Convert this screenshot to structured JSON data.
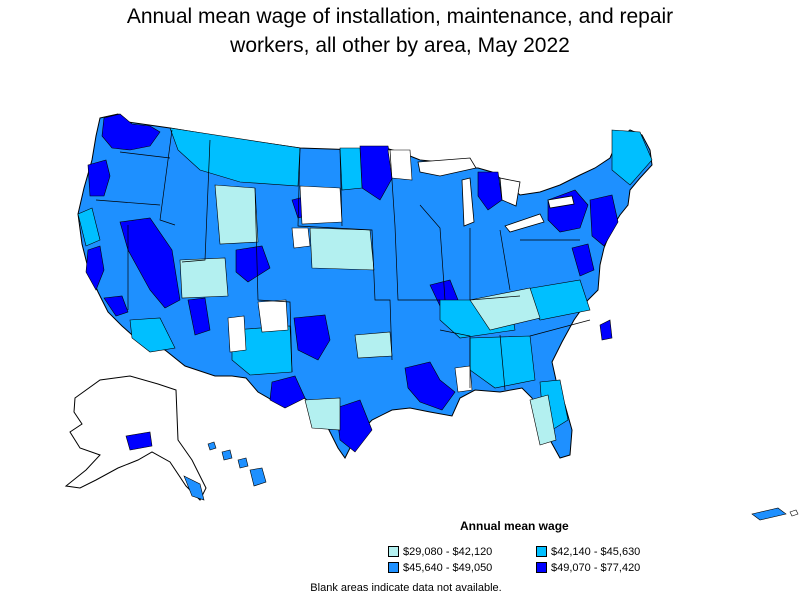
{
  "title_lines": [
    "Annual mean wage of installation, maintenance, and repair",
    "workers, all other by area, May 2022"
  ],
  "legend": {
    "title": "Annual mean wage",
    "items": [
      {
        "label": "$29,080 - $42,120",
        "color": "#b3f0f0"
      },
      {
        "label": "$42,140 - $45,630",
        "color": "#00bfff"
      },
      {
        "label": "$45,640 - $49,050",
        "color": "#1e90ff"
      },
      {
        "label": "$49,070 - $77,420",
        "color": "#0000ff"
      }
    ]
  },
  "note": "Blank areas indicate data not available.",
  "map_colors": {
    "blank": "#ffffff",
    "outline": "#000000"
  }
}
